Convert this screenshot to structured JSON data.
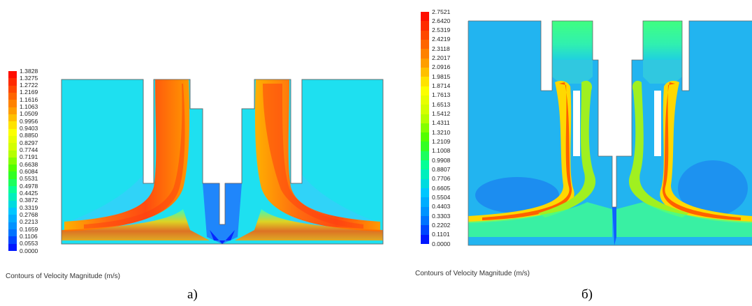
{
  "chart_data": [
    {
      "type": "heatmap",
      "panel_label": "а)",
      "title": "Contours of Velocity Magnitude (m/s)",
      "colorbar_ticks": [
        "1.3828",
        "1.3275",
        "1.2722",
        "1.2169",
        "1.1616",
        "1.1063",
        "1.0509",
        "0.9956",
        "0.9403",
        "0.8850",
        "0.8297",
        "0.7744",
        "0.7191",
        "0.6638",
        "0.6084",
        "0.5531",
        "0.4978",
        "0.4425",
        "0.3872",
        "0.3319",
        "0.2768",
        "0.2213",
        "0.1659",
        "0.1106",
        "0.0553",
        "0.0000"
      ],
      "value_range": [
        0.0,
        1.3828
      ],
      "colormap": [
        "#0000ff",
        "#0080ff",
        "#00c8ff",
        "#00ffa0",
        "#40ff00",
        "#c8ff00",
        "#ffff00",
        "#ffa000",
        "#ff5000",
        "#ff0000"
      ]
    },
    {
      "type": "heatmap",
      "panel_label": "б)",
      "title": "Contours of Velocity Magnitude (m/s)",
      "colorbar_ticks": [
        "2.7521",
        "2.6420",
        "2.5319",
        "2.4219",
        "2.3118",
        "2.2017",
        "2.0916",
        "1.9815",
        "1.8714",
        "1.7613",
        "1.6513",
        "1.5412",
        "1.4311",
        "1.3210",
        "1.2109",
        "1.1008",
        "0.9908",
        "0.8807",
        "0.7706",
        "0.6605",
        "0.5504",
        "0.4403",
        "0.3303",
        "0.2202",
        "0.1101",
        "0.0000"
      ],
      "value_range": [
        0.0,
        2.7521
      ],
      "colormap": [
        "#0000ff",
        "#0080ff",
        "#00c8ff",
        "#00ffa0",
        "#40ff00",
        "#c8ff00",
        "#ffff00",
        "#ffa000",
        "#ff5000",
        "#ff0000"
      ]
    }
  ]
}
